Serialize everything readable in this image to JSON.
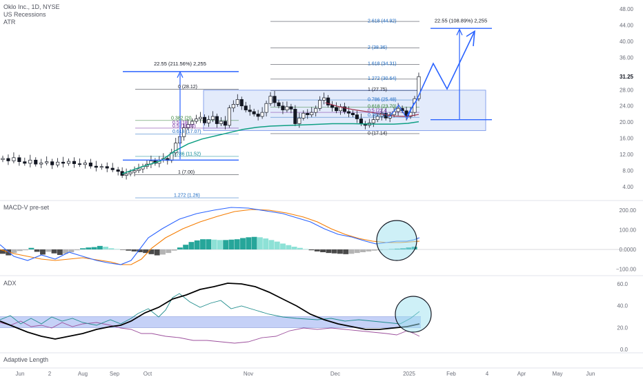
{
  "header": {
    "symbol_line": "Oklo Inc., 1D, NYSE",
    "indicator_1": "US Recessions",
    "indicator_2": "ATR"
  },
  "panes": {
    "macd_label": "MACD-V pre-set",
    "adx_label": "ADX",
    "adaptive_label": "Adaptive Length"
  },
  "colors": {
    "candle_up": "#ffffff",
    "candle_down": "#131722",
    "ema_green": "#0e9f83",
    "ema_maroon": "#a0304a",
    "drawing_blue": "#2962ff",
    "box_fill": "#e3ebfb",
    "macd_blue": "#2962ff",
    "signal_orange": "#f57c00",
    "hist_teal_dark": "#26a69a",
    "hist_teal_light": "#8de1d6",
    "hist_gray_dark": "#4a4a4a",
    "hist_gray_light": "#b4b4b4",
    "adx_black": "#000000",
    "di_plus": "#1e8c8c",
    "di_minus": "#9c4f9c",
    "adx_band": "#b7c5f5",
    "circle_fill": "#9ee2f0"
  },
  "price_axis": {
    "ticks": [
      "48.00",
      "44.00",
      "40.00",
      "36.00",
      "31.25",
      "28.00",
      "24.00",
      "20.00",
      "16.00",
      "12.00",
      "8.00",
      "4.00"
    ],
    "last_price": "31.25"
  },
  "macd_axis": {
    "ticks": [
      "200.00",
      "100.00",
      "0.0000",
      "−100.00"
    ]
  },
  "adx_axis": {
    "ticks": [
      "60.0",
      "40.0",
      "20.0",
      "0.0"
    ]
  },
  "time_axis": {
    "ticks": [
      "Jun",
      "2",
      "Aug",
      "Sep",
      "Oct",
      "Nov",
      "Dec",
      "2025",
      "Feb",
      "4",
      "Apr",
      "May",
      "Jun"
    ]
  },
  "annotations": {
    "proj1_label": "22.55 (211.56%) 2,255",
    "proj2_label": "22.55 (108.89%) 2,255",
    "fib1": [
      "0 (28.12)",
      "0.382 (20",
      "0.5 (18.50)",
      "0.618 (17.07)",
      "0.786 (11.52)",
      "1 (7.00)",
      "1.272 (1.26)"
    ],
    "fib1_extra": "0.5 (18",
    "fib2": [
      "2.618 (44.92)",
      "2 (38.36)",
      "1.618 (34.31)",
      "1.272 (30.64)",
      "1 (27.75)",
      "0.786 (25.48)",
      "0.618 (23.70)",
      "0 (17.14)"
    ],
    "fib2_extra": [
      "0.5 (22.4",
      "0.382 (21.2"
    ]
  },
  "chart_data": [
    {
      "type": "candlestick",
      "title": "Oklo Inc., 1D, NYSE",
      "xlabel": "",
      "ylabel": "",
      "ylim": [
        0,
        48
      ],
      "series": [
        {
          "name": "Price",
          "approx_closes": [
            10.6,
            10.2,
            9.6,
            10.0,
            9.2,
            9.0,
            8.6,
            8.0,
            6.6,
            7.6,
            9.6,
            11.4,
            14.0,
            16.6,
            21.0,
            25.6,
            23.0,
            27.0,
            24.2,
            22.5,
            26.8,
            19.6,
            23.7,
            25.0,
            21.5,
            20.4,
            21.0,
            23.3,
            31.25
          ]
        }
      ]
    },
    {
      "type": "line",
      "title": "MACD-V pre-set",
      "ylim": [
        -100,
        220
      ],
      "series": [
        {
          "name": "",
          "approx_values": [
            -10,
            -60,
            -20,
            -80,
            -50,
            -90,
            20,
            120,
            190,
            200,
            185,
            150,
            120,
            60,
            25,
            18,
            25,
            40
          ]
        },
        {
          "name": "",
          "approx_values": [
            -10,
            -50,
            -40,
            -70,
            -60,
            -80,
            -20,
            80,
            150,
            190,
            195,
            175,
            150,
            90,
            40,
            25,
            25,
            35
          ]
        }
      ]
    },
    {
      "type": "line",
      "title": "ADX",
      "ylim": [
        0,
        60
      ],
      "series": [
        {
          "name": "",
          "approx_values": [
            25,
            18,
            12,
            15,
            22,
            30,
            38,
            45,
            55,
            58,
            55,
            45,
            30,
            20,
            18,
            22
          ]
        },
        {
          "name": "",
          "approx_values": [
            24,
            20,
            22,
            18,
            20,
            40,
            47,
            38,
            34,
            31,
            28,
            25,
            22,
            24,
            37
          ]
        },
        {
          "name": "",
          "approx_values": [
            20,
            18,
            16,
            18,
            14,
            13,
            10,
            7,
            6,
            10,
            14,
            20,
            16,
            14,
            14
          ]
        }
      ]
    }
  ]
}
